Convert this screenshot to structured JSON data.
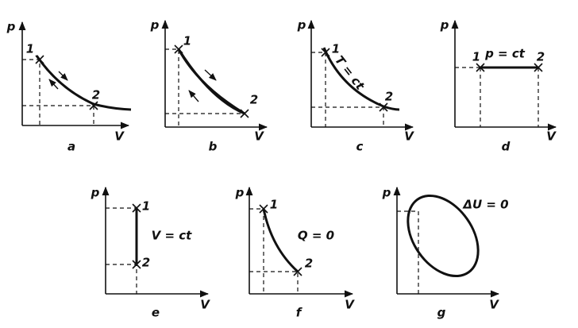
{
  "panels": [
    {
      "label": "a",
      "y_axis": "p",
      "x_axis": "V",
      "points": [
        "1",
        "2"
      ]
    },
    {
      "label": "b",
      "y_axis": "p",
      "x_axis": "V",
      "points": [
        "1",
        "2"
      ]
    },
    {
      "label": "c",
      "y_axis": "p",
      "x_axis": "V",
      "points": [
        "1",
        "2"
      ],
      "annotation": "T = ct"
    },
    {
      "label": "d",
      "y_axis": "p",
      "x_axis": "V",
      "points": [
        "1",
        "2"
      ],
      "annotation": "p = ct"
    },
    {
      "label": "e",
      "y_axis": "p",
      "x_axis": "V",
      "points": [
        "1",
        "2"
      ],
      "annotation": "V = ct"
    },
    {
      "label": "f",
      "y_axis": "p",
      "x_axis": "V",
      "points": [
        "1",
        "2"
      ],
      "annotation": "Q = 0"
    },
    {
      "label": "g",
      "y_axis": "p",
      "x_axis": "V",
      "annotation": "ΔU = 0"
    }
  ]
}
